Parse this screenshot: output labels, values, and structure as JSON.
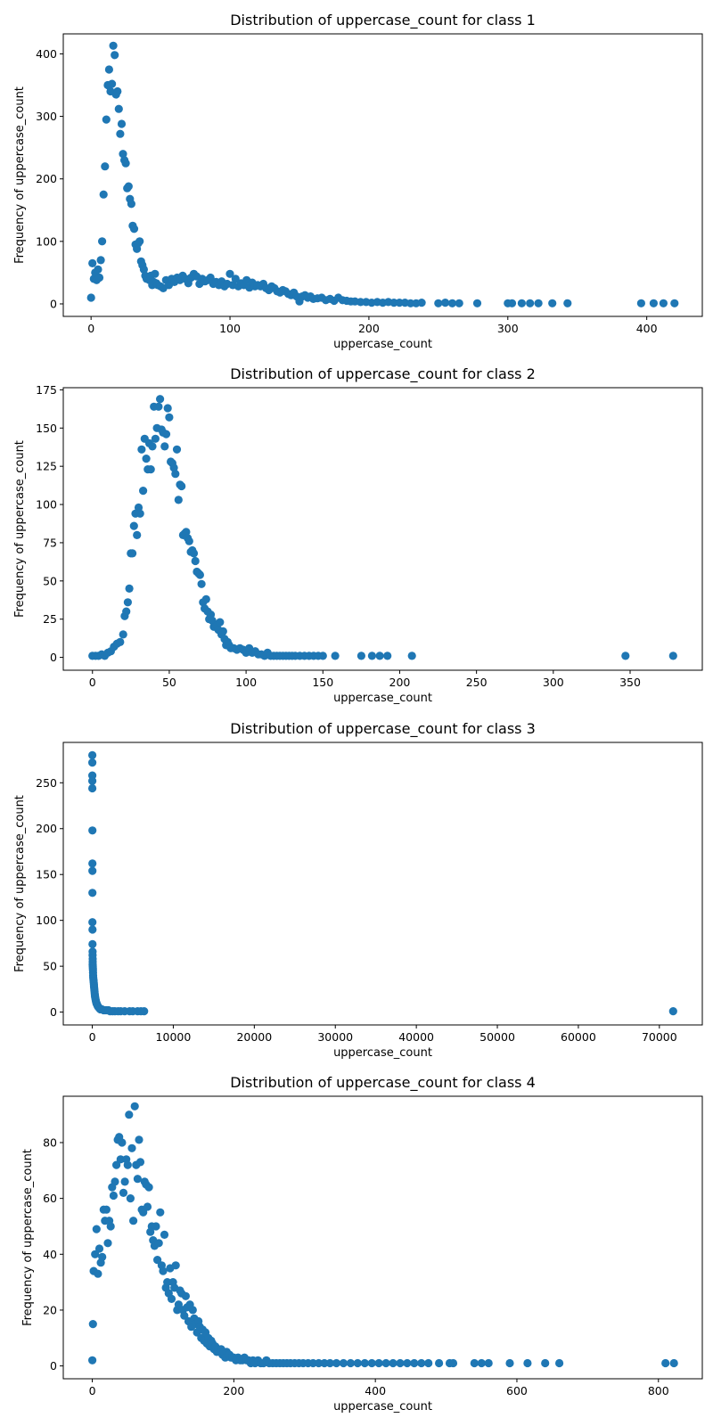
{
  "chart_data": [
    {
      "type": "scatter",
      "title": "Distribution of uppercase_count for class 1",
      "xlabel": "uppercase_count",
      "ylabel": "Frequency of uppercase_count",
      "xlim": [
        -20,
        440
      ],
      "ylim": [
        -20,
        432
      ],
      "xticks": [
        0,
        100,
        200,
        300,
        400
      ],
      "yticks": [
        0,
        100,
        200,
        300,
        400
      ],
      "color": "#1f77b4",
      "grid": false,
      "x": [
        0,
        1,
        2,
        3,
        4,
        5,
        6,
        7,
        8,
        9,
        10,
        11,
        12,
        13,
        14,
        15,
        16,
        17,
        18,
        19,
        20,
        21,
        22,
        23,
        24,
        25,
        26,
        27,
        28,
        29,
        30,
        31,
        32,
        33,
        34,
        35,
        36,
        37,
        38,
        39,
        40,
        41,
        42,
        43,
        44,
        45,
        46,
        47,
        48,
        50,
        52,
        54,
        56,
        58,
        60,
        62,
        64,
        66,
        68,
        70,
        72,
        74,
        76,
        78,
        80,
        82,
        84,
        86,
        88,
        90,
        92,
        94,
        96,
        98,
        100,
        102,
        104,
        106,
        108,
        110,
        112,
        114,
        116,
        118,
        120,
        122,
        124,
        126,
        128,
        130,
        132,
        134,
        136,
        138,
        140,
        142,
        144,
        146,
        148,
        150,
        152,
        154,
        156,
        158,
        160,
        163,
        166,
        169,
        172,
        175,
        178,
        181,
        184,
        187,
        190,
        194,
        198,
        202,
        206,
        210,
        214,
        218,
        222,
        226,
        230,
        234,
        238,
        250,
        255,
        260,
        265,
        278,
        300,
        303,
        310,
        316,
        322,
        332,
        343,
        396,
        405,
        412,
        420
      ],
      "y": [
        10,
        65,
        40,
        50,
        38,
        55,
        42,
        70,
        100,
        175,
        220,
        295,
        350,
        375,
        340,
        352,
        413,
        398,
        335,
        340,
        312,
        272,
        288,
        240,
        230,
        225,
        185,
        188,
        168,
        160,
        125,
        120,
        95,
        88,
        97,
        100,
        68,
        62,
        55,
        45,
        40,
        40,
        38,
        45,
        30,
        35,
        48,
        33,
        30,
        28,
        25,
        38,
        30,
        40,
        35,
        42,
        38,
        45,
        40,
        33,
        42,
        48,
        44,
        32,
        40,
        36,
        38,
        42,
        32,
        35,
        30,
        36,
        28,
        32,
        48,
        30,
        40,
        28,
        33,
        30,
        38,
        26,
        34,
        28,
        30,
        28,
        32,
        25,
        22,
        28,
        25,
        20,
        18,
        22,
        20,
        16,
        14,
        18,
        12,
        4,
        12,
        14,
        10,
        12,
        8,
        9,
        10,
        6,
        8,
        5,
        10,
        6,
        5,
        4,
        4,
        3,
        3,
        2,
        3,
        2,
        3,
        2,
        2,
        2,
        1,
        1,
        2,
        1,
        2,
        1,
        1,
        1,
        1,
        1,
        1,
        1,
        1,
        1,
        1,
        1,
        1,
        1,
        1
      ]
    },
    {
      "type": "scatter",
      "title": "Distribution of uppercase_count for class 2",
      "xlabel": "uppercase_count",
      "ylabel": "Frequency of uppercase_count",
      "xlim": [
        -19,
        397
      ],
      "ylim": [
        -8.4,
        176.4
      ],
      "xticks": [
        0,
        50,
        100,
        150,
        200,
        250,
        300,
        350
      ],
      "yticks": [
        0,
        25,
        50,
        75,
        100,
        125,
        150,
        175
      ],
      "color": "#1f77b4",
      "grid": false,
      "x": [
        0,
        2,
        4,
        6,
        8,
        10,
        12,
        14,
        16,
        18,
        20,
        21,
        22,
        23,
        24,
        25,
        26,
        27,
        28,
        29,
        30,
        31,
        32,
        33,
        34,
        35,
        36,
        37,
        38,
        39,
        40,
        41,
        42,
        43,
        44,
        45,
        46,
        47,
        48,
        49,
        50,
        51,
        52,
        53,
        54,
        55,
        56,
        57,
        58,
        59,
        60,
        61,
        62,
        63,
        64,
        65,
        66,
        67,
        68,
        69,
        70,
        71,
        72,
        73,
        74,
        75,
        76,
        77,
        78,
        79,
        80,
        81,
        82,
        83,
        84,
        85,
        86,
        87,
        88,
        89,
        90,
        92,
        94,
        96,
        98,
        100,
        102,
        104,
        106,
        108,
        110,
        112,
        114,
        116,
        118,
        120,
        122,
        124,
        126,
        128,
        130,
        132,
        135,
        138,
        141,
        144,
        147,
        150,
        158,
        175,
        182,
        187,
        192,
        208,
        347,
        378
      ],
      "y": [
        1,
        1,
        1,
        2,
        1,
        3,
        4,
        7,
        9,
        10,
        15,
        27,
        30,
        36,
        45,
        68,
        68,
        86,
        94,
        80,
        98,
        94,
        136,
        109,
        143,
        130,
        123,
        140,
        123,
        138,
        164,
        143,
        150,
        164,
        169,
        149,
        147,
        138,
        146,
        163,
        157,
        128,
        127,
        124,
        120,
        136,
        103,
        113,
        112,
        80,
        81,
        82,
        78,
        76,
        69,
        70,
        68,
        63,
        56,
        55,
        54,
        48,
        36,
        32,
        38,
        30,
        25,
        28,
        24,
        20,
        20,
        21,
        18,
        23,
        15,
        17,
        12,
        8,
        10,
        8,
        6,
        6,
        5,
        6,
        5,
        3,
        6,
        3,
        4,
        2,
        2,
        1,
        3,
        1,
        1,
        1,
        1,
        1,
        1,
        1,
        1,
        1,
        1,
        1,
        1,
        1,
        1,
        1,
        1,
        1,
        1,
        1,
        1,
        1,
        1,
        1
      ]
    },
    {
      "type": "scatter",
      "title": "Distribution of uppercase_count for class 3",
      "xlabel": "uppercase_count",
      "ylabel": "Frequency of uppercase_count",
      "xlim": [
        -3580,
        75300
      ],
      "ylim": [
        -14,
        294
      ],
      "xticks": [
        0,
        10000,
        20000,
        30000,
        40000,
        50000,
        60000,
        70000
      ],
      "yticks": [
        0,
        50,
        100,
        150,
        200,
        250
      ],
      "color": "#1f77b4",
      "grid": false,
      "x": [
        2,
        4,
        6,
        8,
        10,
        12,
        14,
        16,
        18,
        20,
        25,
        30,
        35,
        40,
        45,
        50,
        55,
        60,
        70,
        80,
        90,
        100,
        120,
        140,
        160,
        180,
        200,
        220,
        240,
        260,
        280,
        300,
        330,
        360,
        400,
        450,
        500,
        550,
        600,
        650,
        700,
        800,
        900,
        1000,
        1200,
        1400,
        1600,
        1800,
        2000,
        2200,
        2500,
        2800,
        3200,
        3500,
        4000,
        4600,
        5000,
        5600,
        6000,
        6400,
        71700
      ],
      "y": [
        280,
        272,
        258,
        252,
        244,
        198,
        162,
        154,
        130,
        98,
        90,
        74,
        66,
        62,
        58,
        55,
        52,
        50,
        48,
        46,
        43,
        40,
        38,
        36,
        34,
        32,
        30,
        28,
        26,
        24,
        22,
        20,
        18,
        16,
        14,
        12,
        10,
        9,
        8,
        7,
        6,
        5,
        4,
        3,
        3,
        2,
        2,
        2,
        2,
        1,
        1,
        1,
        1,
        1,
        1,
        1,
        1,
        1,
        1,
        1,
        1
      ]
    },
    {
      "type": "scatter",
      "title": "Distribution of uppercase_count for class 4",
      "xlabel": "uppercase_count",
      "ylabel": "Frequency of uppercase_count",
      "xlim": [
        -41,
        862
      ],
      "ylim": [
        -4.6,
        96.6
      ],
      "xticks": [
        0,
        200,
        400,
        600,
        800
      ],
      "yticks": [
        0,
        20,
        40,
        60,
        80
      ],
      "color": "#1f77b4",
      "grid": false,
      "x": [
        0,
        1,
        2,
        4,
        6,
        8,
        10,
        12,
        14,
        16,
        18,
        20,
        22,
        24,
        26,
        28,
        30,
        32,
        34,
        36,
        38,
        40,
        42,
        44,
        46,
        48,
        50,
        52,
        54,
        56,
        58,
        60,
        62,
        64,
        66,
        68,
        70,
        72,
        74,
        76,
        78,
        80,
        82,
        84,
        86,
        88,
        90,
        92,
        94,
        96,
        98,
        100,
        102,
        104,
        106,
        108,
        110,
        112,
        114,
        116,
        118,
        120,
        122,
        124,
        126,
        128,
        130,
        132,
        134,
        136,
        138,
        140,
        142,
        144,
        146,
        148,
        150,
        152,
        154,
        156,
        158,
        160,
        162,
        164,
        166,
        168,
        170,
        172,
        174,
        176,
        178,
        180,
        182,
        184,
        186,
        188,
        190,
        192,
        194,
        196,
        198,
        200,
        203,
        206,
        209,
        212,
        215,
        218,
        221,
        224,
        227,
        230,
        234,
        238,
        242,
        246,
        250,
        255,
        260,
        265,
        270,
        275,
        280,
        286,
        292,
        298,
        305,
        312,
        320,
        328,
        336,
        345,
        355,
        365,
        375,
        385,
        395,
        405,
        415,
        425,
        435,
        445,
        455,
        465,
        475,
        490,
        505,
        510,
        540,
        550,
        560,
        590,
        615,
        640,
        660,
        810,
        822
      ],
      "y": [
        2,
        15,
        34,
        40,
        49,
        33,
        42,
        37,
        39,
        56,
        52,
        56,
        44,
        52,
        50,
        64,
        61,
        66,
        72,
        81,
        82,
        74,
        80,
        62,
        66,
        74,
        72,
        90,
        60,
        78,
        52,
        93,
        72,
        67,
        81,
        73,
        56,
        55,
        66,
        65,
        57,
        64,
        48,
        50,
        45,
        43,
        50,
        38,
        44,
        55,
        36,
        34,
        47,
        28,
        30,
        26,
        35,
        24,
        30,
        28,
        36,
        20,
        22,
        27,
        26,
        20,
        18,
        25,
        21,
        16,
        22,
        14,
        20,
        17,
        15,
        12,
        16,
        14,
        10,
        13,
        9,
        12,
        8,
        10,
        7,
        9,
        8,
        6,
        7,
        5,
        6,
        5,
        6,
        4,
        5,
        3,
        5,
        4,
        4,
        3,
        3,
        3,
        2,
        3,
        2,
        2,
        3,
        2,
        2,
        1,
        2,
        1,
        2,
        1,
        1,
        2,
        1,
        1,
        1,
        1,
        1,
        1,
        1,
        1,
        1,
        1,
        1,
        1,
        1,
        1,
        1,
        1,
        1,
        1,
        1,
        1,
        1,
        1,
        1,
        1,
        1,
        1,
        1,
        1,
        1,
        1,
        1,
        1,
        1,
        1,
        1,
        1,
        1,
        1,
        1,
        1,
        1
      ]
    }
  ]
}
